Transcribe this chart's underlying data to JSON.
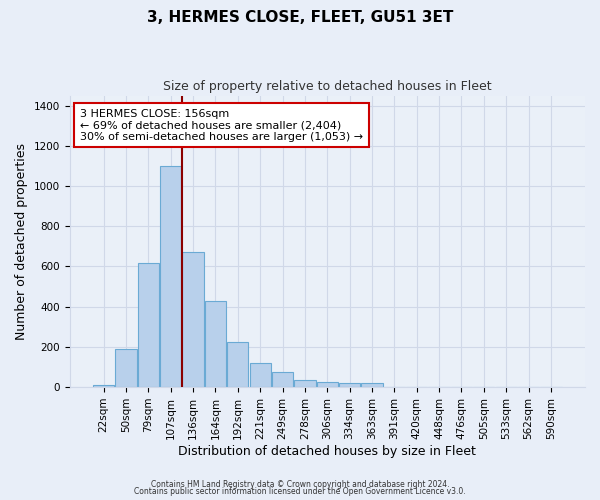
{
  "title": "3, HERMES CLOSE, FLEET, GU51 3ET",
  "subtitle": "Size of property relative to detached houses in Fleet",
  "xlabel": "Distribution of detached houses by size in Fleet",
  "ylabel": "Number of detached properties",
  "footnote1": "Contains HM Land Registry data © Crown copyright and database right 2024.",
  "footnote2": "Contains public sector information licensed under the Open Government Licence v3.0.",
  "bar_labels": [
    "22sqm",
    "50sqm",
    "79sqm",
    "107sqm",
    "136sqm",
    "164sqm",
    "192sqm",
    "221sqm",
    "249sqm",
    "278sqm",
    "306sqm",
    "334sqm",
    "363sqm",
    "391sqm",
    "420sqm",
    "448sqm",
    "476sqm",
    "505sqm",
    "533sqm",
    "562sqm",
    "590sqm"
  ],
  "bar_values": [
    12,
    190,
    615,
    1100,
    670,
    430,
    225,
    120,
    75,
    35,
    25,
    20,
    18,
    0,
    0,
    0,
    0,
    0,
    0,
    0,
    0
  ],
  "bar_color": "#b8d0eb",
  "bar_edge_color": "#6aaad4",
  "ylim": [
    0,
    1450
  ],
  "yticks": [
    0,
    200,
    400,
    600,
    800,
    1000,
    1200,
    1400
  ],
  "property_line_color": "#8b0000",
  "annotation_text": "3 HERMES CLOSE: 156sqm\n← 69% of detached houses are smaller (2,404)\n30% of semi-detached houses are larger (1,053) →",
  "annotation_box_color": "#ffffff",
  "annotation_box_edge": "#cc0000",
  "bg_color": "#e8eef8",
  "plot_bg_color": "#eaf0f8",
  "grid_color": "#d0d8e8",
  "title_fontsize": 11,
  "subtitle_fontsize": 9,
  "axis_label_fontsize": 9,
  "tick_fontsize": 7.5,
  "annotation_fontsize": 8
}
